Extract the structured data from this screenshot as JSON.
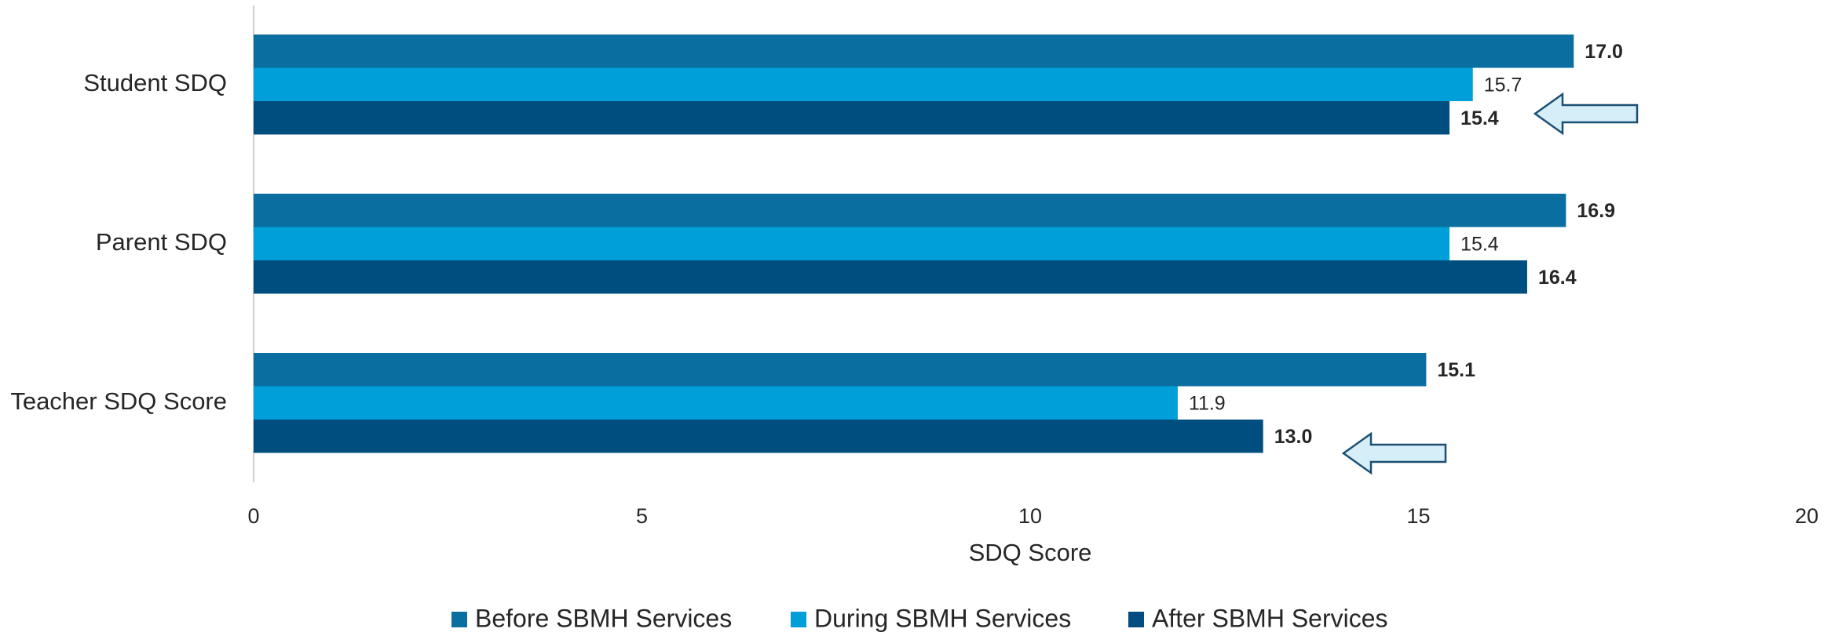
{
  "chart_data": {
    "type": "bar",
    "orientation": "horizontal",
    "categories": [
      "Student SDQ",
      "Parent SDQ",
      "Teacher SDQ Score"
    ],
    "series": [
      {
        "name": "Before SBMH Services",
        "color": "#0b6ea0",
        "values": [
          17.0,
          16.9,
          15.1
        ],
        "value_labels": [
          "17.0",
          "16.9",
          "15.1"
        ]
      },
      {
        "name": "During SBMH Services",
        "color": "#009fd9",
        "values": [
          15.7,
          15.4,
          11.9
        ],
        "value_labels": [
          "15.7",
          "15.4",
          "11.9"
        ]
      },
      {
        "name": "After SBMH Services",
        "color": "#004e7f",
        "values": [
          15.4,
          16.4,
          13.0
        ],
        "value_labels": [
          "15.4",
          "16.4",
          "13.0"
        ]
      }
    ],
    "xlabel": "SDQ Score",
    "xlim": [
      0,
      20
    ],
    "xticks": [
      0,
      5,
      10,
      15,
      20
    ],
    "legend": "bottom"
  }
}
